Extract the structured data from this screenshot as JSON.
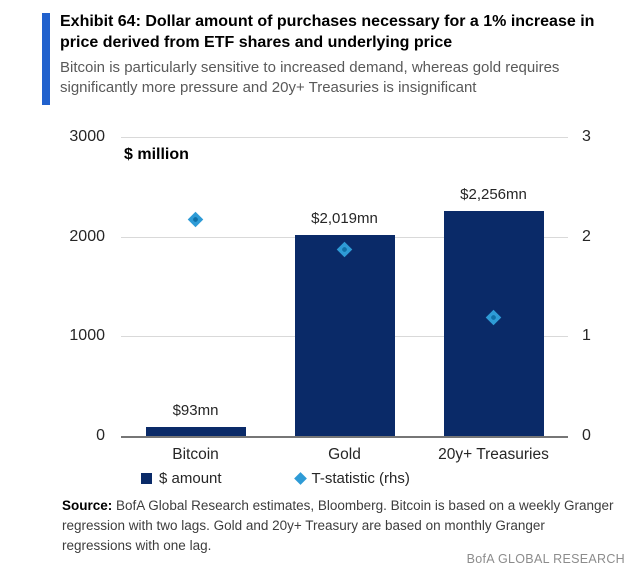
{
  "header": {
    "title": "Exhibit 64: Dollar amount of purchases necessary for a 1% increase in price derived from ETF shares and underlying price",
    "subtitle": "Bitcoin is particularly sensitive to increased demand, whereas gold requires significantly more pressure and 20y+ Treasuries is insignificant",
    "accent_color": "#2161cd"
  },
  "chart_data": {
    "type": "bar",
    "categories": [
      "Bitcoin",
      "Gold",
      "20y+ Treasuries"
    ],
    "series": [
      {
        "name": "$ amount",
        "chart_type": "bar",
        "axis": "left",
        "values": [
          93,
          2019,
          2256
        ],
        "data_labels": [
          "$93mn",
          "$2,019mn",
          "$2,256mn"
        ],
        "color": "#0a2a68"
      },
      {
        "name": "T-statistic (rhs)",
        "chart_type": "scatter",
        "marker": "diamond",
        "axis": "right",
        "values": [
          2.17,
          1.87,
          1.19
        ],
        "color": "#2e9bd6",
        "marker_center_color": "#1070a8"
      }
    ],
    "left_axis": {
      "label": "$ million",
      "range": [
        0,
        3000
      ],
      "ticks": [
        0,
        1000,
        2000,
        3000
      ]
    },
    "right_axis": {
      "range": [
        0,
        3
      ],
      "ticks": [
        0,
        1,
        2,
        3
      ]
    },
    "grid": true,
    "legend_position": "bottom",
    "gridline_color": "#d9d9d9",
    "axis_line_color": "#767676"
  },
  "source": {
    "label": "Source:",
    "text": "BofA Global Research estimates, Bloomberg. Bitcoin is based on a weekly Granger regression with two lags. Gold and 20y+ Treasury are based on monthly Granger regressions with one lag."
  },
  "footer": {
    "brand": "BofA GLOBAL RESEARCH"
  }
}
